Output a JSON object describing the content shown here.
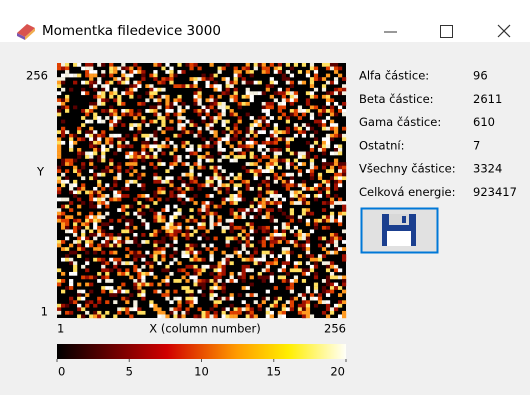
{
  "window": {
    "title": "Momentka filedevice 3000"
  },
  "plot": {
    "y_top": "256",
    "y_label": "Y",
    "y_bottom": "1",
    "x_left": "1",
    "x_label": "X (column number)",
    "x_right": "256"
  },
  "colorbar": {
    "lim": [
      0,
      20
    ],
    "ticks": [
      0,
      5,
      10,
      15,
      20
    ]
  },
  "stats": [
    {
      "label": "Alfa částice:",
      "value": "96"
    },
    {
      "label": "Beta částice:",
      "value": "2611"
    },
    {
      "label": "Gama částice:",
      "value": "610"
    },
    {
      "label": "Ostatní:",
      "value": "7"
    },
    {
      "label": "Všechny částice:",
      "value": "3324"
    },
    {
      "label": "Celková energie:",
      "value": "923417"
    }
  ]
}
